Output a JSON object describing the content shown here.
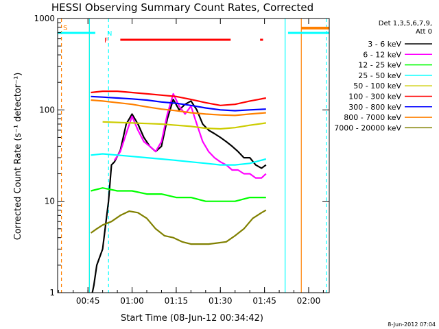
{
  "chart_data": {
    "type": "line",
    "title": "HESSI Observing Summary Count Rates, Corrected",
    "xlabel": "Start Time (08-Jun-12 00:34:42)",
    "ylabel": "Corrected Count Rate (s⁻¹ detector⁻¹)",
    "xlim": [
      "00:34:42",
      "02:07:00"
    ],
    "ylim": [
      1,
      1000
    ],
    "yscale": "log",
    "x_ticks": [
      "00:45",
      "01:00",
      "01:15",
      "01:30",
      "01:45",
      "02:00"
    ],
    "y_ticks": [
      "1",
      "10",
      "100",
      "1000"
    ],
    "footer": "8-Jun-2012 07:04",
    "legend": {
      "placement": "right",
      "header": [
        "Det 1,3,5,6,7,9,",
        "Att 0"
      ]
    },
    "series": [
      {
        "name": "3 - 6 keV",
        "color": "#000000",
        "x": [
          "00:46:30",
          "00:47:00",
          "00:48:00",
          "00:50:00",
          "00:52:00",
          "00:53:00",
          "00:54:00",
          "00:56:00",
          "00:58:00",
          "01:00:00",
          "01:02:00",
          "01:04:00",
          "01:06:00",
          "01:08:00",
          "01:10:00",
          "01:12:00",
          "01:14:00",
          "01:16:00",
          "01:18:00",
          "01:20:00",
          "01:22:00",
          "01:24:00",
          "01:26:00",
          "01:28:00",
          "01:30:00",
          "01:32:00",
          "01:34:00",
          "01:36:00",
          "01:38:00",
          "01:40:00",
          "01:42:00",
          "01:44:00",
          "01:45:30"
        ],
        "y": [
          1,
          1.2,
          2,
          3,
          10,
          25,
          27,
          36,
          70,
          90,
          70,
          50,
          40,
          35,
          40,
          80,
          130,
          100,
          115,
          125,
          100,
          70,
          60,
          55,
          50,
          45,
          40,
          35,
          30,
          30,
          25,
          23,
          25
        ]
      },
      {
        "name": "6 - 12 keV",
        "color": "#ff00ff",
        "x": [
          "00:54:00",
          "00:56:00",
          "00:58:00",
          "01:00:00",
          "01:02:00",
          "01:04:00",
          "01:06:00",
          "01:08:00",
          "01:10:00",
          "01:12:00",
          "01:14:00",
          "01:16:00",
          "01:18:00",
          "01:20:00",
          "01:22:00",
          "01:24:00",
          "01:26:00",
          "01:28:00",
          "01:30:00",
          "01:32:00",
          "01:34:00",
          "01:36:00",
          "01:38:00",
          "01:40:00",
          "01:42:00",
          "01:44:00",
          "01:45:30"
        ],
        "y": [
          28,
          35,
          55,
          85,
          60,
          45,
          40,
          35,
          45,
          90,
          150,
          110,
          90,
          110,
          70,
          45,
          35,
          30,
          27,
          25,
          22,
          22,
          20,
          20,
          18,
          18,
          20
        ]
      },
      {
        "name": "12 - 25 keV",
        "color": "#00ff00",
        "x": [
          "00:46:00",
          "00:50:00",
          "00:55:00",
          "01:00:00",
          "01:05:00",
          "01:10:00",
          "01:15:00",
          "01:20:00",
          "01:25:00",
          "01:30:00",
          "01:35:00",
          "01:40:00",
          "01:45:30"
        ],
        "y": [
          13,
          14,
          13,
          13,
          12,
          12,
          11,
          11,
          10,
          10,
          10,
          11,
          11
        ]
      },
      {
        "name": "25 - 50 keV",
        "color": "#00ffff",
        "x": [
          "00:46:00",
          "00:50:00",
          "00:55:00",
          "01:00:00",
          "01:05:00",
          "01:10:00",
          "01:15:00",
          "01:20:00",
          "01:25:00",
          "01:30:00",
          "01:35:00",
          "01:40:00",
          "01:45:30"
        ],
        "y": [
          32,
          33,
          32,
          31,
          30,
          29,
          28,
          27,
          26,
          25,
          25,
          26,
          29
        ]
      },
      {
        "name": "50 - 100 keV",
        "color": "#cccc00",
        "x": [
          "00:50:00",
          "00:55:00",
          "01:00:00",
          "01:05:00",
          "01:10:00",
          "01:15:00",
          "01:20:00",
          "01:25:00",
          "01:30:00",
          "01:35:00",
          "01:40:00",
          "01:45:30"
        ],
        "y": [
          74,
          73,
          72,
          71,
          70,
          68,
          66,
          63,
          62,
          64,
          68,
          72
        ]
      },
      {
        "name": "100 - 300 keV",
        "color": "#ff0000",
        "x": [
          "00:46:00",
          "00:50:00",
          "00:55:00",
          "01:00:00",
          "01:05:00",
          "01:10:00",
          "01:15:00",
          "01:20:00",
          "01:25:00",
          "01:30:00",
          "01:35:00",
          "01:40:00",
          "01:45:30"
        ],
        "y": [
          155,
          160,
          160,
          155,
          150,
          145,
          140,
          130,
          120,
          112,
          115,
          125,
          135
        ]
      },
      {
        "name": "300 - 800 keV",
        "color": "#0000ff",
        "x": [
          "00:46:00",
          "00:50:00",
          "00:55:00",
          "01:00:00",
          "01:05:00",
          "01:10:00",
          "01:15:00",
          "01:20:00",
          "01:25:00",
          "01:30:00",
          "01:35:00",
          "01:40:00",
          "01:45:30"
        ],
        "y": [
          140,
          138,
          135,
          132,
          128,
          122,
          118,
          112,
          105,
          100,
          98,
          100,
          102
        ]
      },
      {
        "name": "800 - 7000 keV",
        "color": "#ff8000",
        "x": [
          "00:46:00",
          "00:50:00",
          "00:55:00",
          "01:00:00",
          "01:05:00",
          "01:10:00",
          "01:15:00",
          "01:20:00",
          "01:25:00",
          "01:30:00",
          "01:35:00",
          "01:40:00",
          "01:45:30"
        ],
        "y": [
          128,
          125,
          120,
          115,
          108,
          102,
          98,
          93,
          90,
          88,
          87,
          90,
          93
        ]
      },
      {
        "name": "7000 - 20000 keV",
        "color": "#808000",
        "x": [
          "00:46:00",
          "00:48:00",
          "00:50:00",
          "00:53:00",
          "00:56:00",
          "00:59:00",
          "01:02:00",
          "01:05:00",
          "01:08:00",
          "01:11:00",
          "01:14:00",
          "01:17:00",
          "01:20:00",
          "01:23:00",
          "01:26:00",
          "01:29:00",
          "01:32:00",
          "01:35:00",
          "01:38:00",
          "01:41:00",
          "01:44:00",
          "01:45:30"
        ],
        "y": [
          4.5,
          5,
          5.5,
          6,
          7,
          7.8,
          7.5,
          6.5,
          5,
          4.2,
          4,
          3.6,
          3.4,
          3.4,
          3.4,
          3.5,
          3.6,
          4.2,
          5,
          6.5,
          7.5,
          8
        ]
      }
    ],
    "annotations": {
      "flags": [
        {
          "label": "S",
          "color": "#ff8000"
        },
        {
          "label": "N",
          "color": "#00ffff"
        },
        {
          "label": "F",
          "color": "#ff0000"
        }
      ],
      "night_segments": [
        {
          "start": "00:34:42",
          "end": "00:47:30",
          "color": "#00ffff"
        },
        {
          "start": "01:53:00",
          "end": "02:07:00",
          "color": "#00ffff"
        }
      ],
      "saa_segments": [
        {
          "start": "01:57:30",
          "end": "02:07:00",
          "color": "#ff8000"
        }
      ],
      "flare_segments": [
        {
          "start": "00:56:00",
          "end": "01:33:30",
          "color": "#ff0000"
        },
        {
          "start": "01:43:30",
          "end": "01:44:30",
          "color": "#ff0000"
        }
      ],
      "vertical_lines": [
        {
          "time": "00:36:00",
          "color": "#ff8000",
          "style": "dashed"
        },
        {
          "time": "00:45:30",
          "color": "#ff8000",
          "style": "solid"
        },
        {
          "time": "00:45:30",
          "color": "#00ffff",
          "style": "solid"
        },
        {
          "time": "00:52:00",
          "color": "#00ffff",
          "style": "dashed"
        },
        {
          "time": "01:52:00",
          "color": "#00ffff",
          "style": "solid"
        },
        {
          "time": "01:57:30",
          "color": "#ff8000",
          "style": "solid"
        },
        {
          "time": "02:06:00",
          "color": "#00ffff",
          "style": "dashed"
        }
      ]
    }
  }
}
